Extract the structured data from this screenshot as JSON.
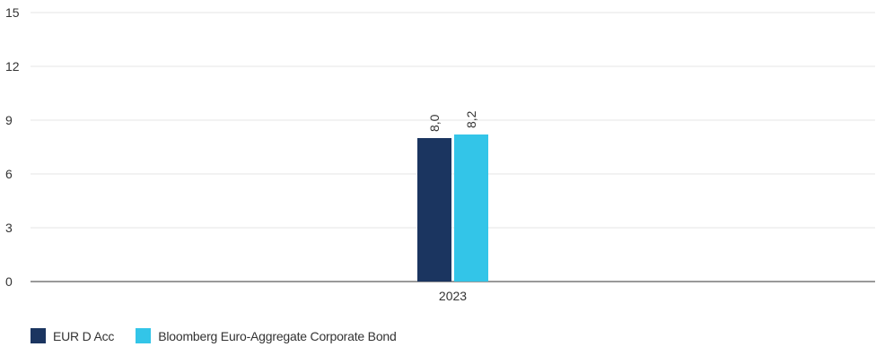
{
  "chart_data": {
    "type": "bar",
    "categories": [
      "2023"
    ],
    "series": [
      {
        "name": "EUR D Acc",
        "values": [
          8.0
        ],
        "labels": [
          "8,0"
        ],
        "color": "#1b3560"
      },
      {
        "name": "Bloomberg Euro-Aggregate Corporate Bond",
        "values": [
          8.2
        ],
        "labels": [
          "8,2"
        ],
        "color": "#33c5e8"
      }
    ],
    "yticks": [
      "0",
      "3",
      "6",
      "9",
      "12",
      "15"
    ],
    "ylim": [
      0,
      15
    ],
    "grid": true,
    "legend_position": "bottom-left"
  }
}
